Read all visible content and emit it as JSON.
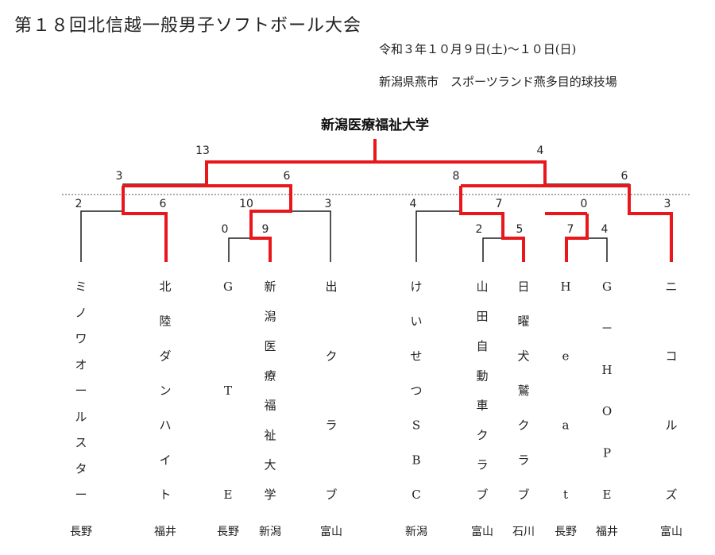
{
  "document": {
    "title": "第１８回北信越一般男子ソフトボール大会",
    "date": "令和３年１０月９日(土)～１０日(日)",
    "venue": "新潟県燕市　スポーツランド燕多目的球技場",
    "champion": "新潟医療福祉大学"
  },
  "teams": [
    {
      "name": "ミノワオールスター",
      "prefecture": "長野"
    },
    {
      "name": "北陸ダンハイト",
      "prefecture": "福井"
    },
    {
      "name": "GTE",
      "prefecture": "長野"
    },
    {
      "name": "新潟医療福祉大学",
      "prefecture": "新潟"
    },
    {
      "name": "出クラブ",
      "prefecture": "富山"
    },
    {
      "name": "けいせつSBC",
      "prefecture": "新潟"
    },
    {
      "name": "山田自動車クラブ",
      "prefecture": "富山"
    },
    {
      "name": "日曜犬鷲クラブ",
      "prefecture": "石川"
    },
    {
      "name": "Heat",
      "prefecture": "長野"
    },
    {
      "name": "G－HOPE",
      "prefecture": "福井"
    },
    {
      "name": "ニコルズ",
      "prefecture": "富山"
    }
  ],
  "scores": {
    "final_left": "13",
    "final_right": "4",
    "sf_left_left": "3",
    "sf_left_right": "6",
    "sf_right_left": "8",
    "sf_right_right": "6",
    "r1_mino": "2",
    "r1_hokuriku": "6",
    "qf_gte_niigata": "10",
    "qf_de": "3",
    "r1_gte": "0",
    "r1_niigata": "9",
    "qf_keisetsu": "4",
    "qf_yamada_nichiyo": "7",
    "r1_yamada": "2",
    "r1_nichiyo": "5",
    "qf_heat_ghope": "0",
    "qf_nicols": "3",
    "r1_heat": "7",
    "r1_ghope": "4"
  }
}
